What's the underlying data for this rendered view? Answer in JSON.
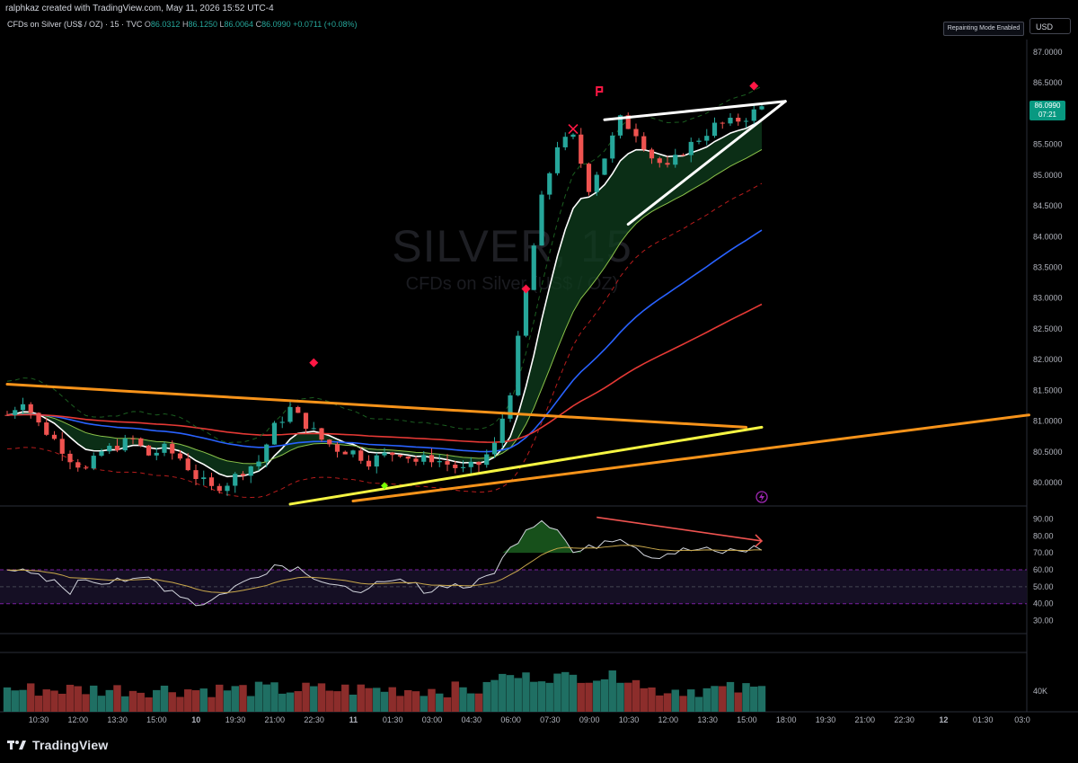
{
  "header": {
    "credit": "ralphkaz created with TradingView.com, May 11, 2026 15:52 UTC-4",
    "symbol_desc": "CFDs on Silver (US$ / OZ) · 15 · TVC",
    "open_label": "O",
    "open": "86.0312",
    "high_label": "H",
    "high": "86.1250",
    "low_label": "L",
    "low": "86.0064",
    "close_label": "C",
    "close": "86.0990",
    "change": "+0.0711 (+0.08%)",
    "repaint_badge": "Repainting Mode Enabled",
    "currency": "USD"
  },
  "watermark": {
    "title": "SILVER, 15",
    "subtitle": "CFDs on Silver (US$ / OZ)"
  },
  "last_price": {
    "value": "86.0990",
    "countdown": "07:21"
  },
  "price_axis": [
    "87.0000",
    "86.5000",
    "86.0000",
    "85.5000",
    "85.0000",
    "84.5000",
    "84.0000",
    "83.5000",
    "83.0000",
    "82.5000",
    "82.0000",
    "81.5000",
    "81.0000",
    "80.5000",
    "80.0000"
  ],
  "rsi_axis": [
    "90.00",
    "80.00",
    "70.00",
    "60.00",
    "50.00",
    "40.00",
    "30.00"
  ],
  "volume_axis": [
    "40K"
  ],
  "time_axis": [
    "10:30",
    "12:00",
    "13:30",
    "15:00",
    "10",
    "19:30",
    "21:00",
    "22:30",
    "11",
    "01:30",
    "03:00",
    "04:30",
    "06:00",
    "07:30",
    "09:00",
    "10:30",
    "12:00",
    "13:30",
    "15:00",
    "18:00",
    "19:30",
    "21:00",
    "22:30",
    "12",
    "01:30",
    "03:0"
  ],
  "brand": {
    "name": "TradingView"
  },
  "colors": {
    "up": "#26a69a",
    "down": "#ef5350",
    "rsi_line": "#d1d4dc",
    "rsi_ma": "#c9a84c",
    "trend_orange": "#f7931a",
    "trend_yellow": "#f5f542",
    "ma_blue": "#2962ff",
    "ma_red": "#e53935"
  },
  "chart_data": {
    "type": "candlestick",
    "symbol": "CFDs on Silver (US$ / OZ)",
    "interval": "15",
    "ylim": [
      79.6,
      87.3
    ],
    "last_close": 86.099,
    "price_path": [
      [
        0,
        81.1
      ],
      [
        2,
        81.35
      ],
      [
        4,
        80.95
      ],
      [
        6,
        80.7
      ],
      [
        8,
        80.4
      ],
      [
        10,
        80.2
      ],
      [
        12,
        80.5
      ],
      [
        14,
        80.6
      ],
      [
        16,
        80.7
      ],
      [
        18,
        80.45
      ],
      [
        20,
        80.55
      ],
      [
        22,
        80.4
      ],
      [
        24,
        80.1
      ],
      [
        26,
        79.9
      ],
      [
        28,
        80.0
      ],
      [
        30,
        80.2
      ],
      [
        32,
        80.35
      ],
      [
        34,
        80.9
      ],
      [
        36,
        81.2
      ],
      [
        38,
        80.95
      ],
      [
        40,
        80.7
      ],
      [
        42,
        80.55
      ],
      [
        44,
        80.5
      ],
      [
        46,
        80.35
      ],
      [
        48,
        80.45
      ],
      [
        50,
        80.5
      ],
      [
        52,
        80.35
      ],
      [
        54,
        80.4
      ],
      [
        56,
        80.3
      ],
      [
        58,
        80.2
      ],
      [
        60,
        80.3
      ],
      [
        62,
        80.6
      ],
      [
        64,
        81.5
      ],
      [
        66,
        83.1
      ],
      [
        68,
        84.6
      ],
      [
        70,
        85.5
      ],
      [
        72,
        85.6
      ],
      [
        74,
        84.8
      ],
      [
        76,
        85.3
      ],
      [
        78,
        85.9
      ],
      [
        80,
        85.7
      ],
      [
        82,
        85.3
      ],
      [
        84,
        85.1
      ],
      [
        86,
        85.4
      ],
      [
        88,
        85.6
      ],
      [
        90,
        85.8
      ],
      [
        92,
        85.85
      ],
      [
        94,
        85.95
      ],
      [
        96,
        86.1
      ]
    ],
    "trendlines": [
      {
        "name": "orange-descending",
        "from": [
          0,
          81.6
        ],
        "to": [
          94,
          80.9
        ]
      },
      {
        "name": "yellow-ascending",
        "from": [
          36,
          79.65
        ],
        "to": [
          96,
          80.9
        ]
      },
      {
        "name": "orange-ascending",
        "from": [
          44,
          79.7
        ],
        "to": [
          130,
          81.1
        ]
      },
      {
        "name": "white-top",
        "from": [
          76,
          85.9
        ],
        "to": [
          99,
          86.2
        ]
      },
      {
        "name": "white-bottom",
        "from": [
          79,
          84.2
        ],
        "to": [
          99,
          86.2
        ]
      }
    ],
    "rsi": {
      "levels": [
        60,
        50,
        40
      ],
      "path": [
        [
          0,
          62
        ],
        [
          2,
          58
        ],
        [
          4,
          55
        ],
        [
          6,
          52
        ],
        [
          8,
          48
        ],
        [
          10,
          55
        ],
        [
          12,
          53
        ],
        [
          14,
          56
        ],
        [
          16,
          52
        ],
        [
          18,
          55
        ],
        [
          20,
          50
        ],
        [
          22,
          46
        ],
        [
          24,
          40
        ],
        [
          26,
          42
        ],
        [
          28,
          48
        ],
        [
          30,
          52
        ],
        [
          32,
          58
        ],
        [
          34,
          63
        ],
        [
          36,
          62
        ],
        [
          38,
          60
        ],
        [
          40,
          54
        ],
        [
          42,
          50
        ],
        [
          44,
          45
        ],
        [
          46,
          52
        ],
        [
          48,
          50
        ],
        [
          50,
          53
        ],
        [
          52,
          50
        ],
        [
          54,
          48
        ],
        [
          56,
          52
        ],
        [
          58,
          50
        ],
        [
          60,
          52
        ],
        [
          62,
          60
        ],
        [
          64,
          72
        ],
        [
          66,
          85
        ],
        [
          68,
          90
        ],
        [
          70,
          85
        ],
        [
          72,
          70
        ],
        [
          74,
          72
        ],
        [
          76,
          78
        ],
        [
          78,
          80
        ],
        [
          80,
          74
        ],
        [
          82,
          68
        ],
        [
          84,
          70
        ],
        [
          86,
          71
        ],
        [
          88,
          72
        ],
        [
          90,
          70
        ],
        [
          92,
          71
        ],
        [
          94,
          72
        ],
        [
          96,
          73
        ]
      ]
    },
    "volume_axis_label": "40K"
  }
}
